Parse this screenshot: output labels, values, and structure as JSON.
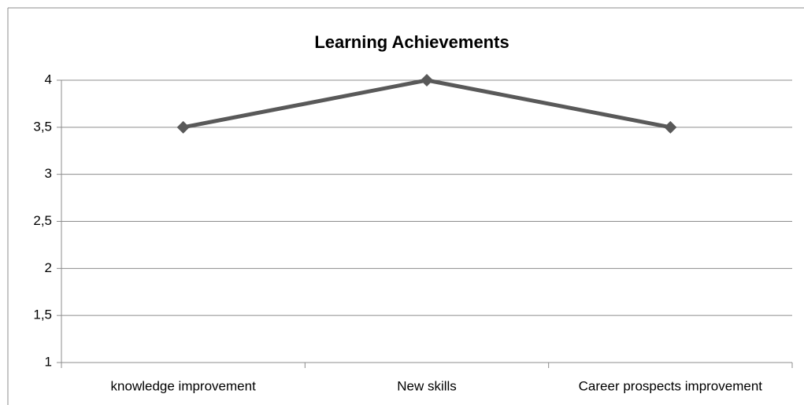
{
  "chart_data": {
    "type": "line",
    "title": "Learning Achievements",
    "categories": [
      "knowledge improvement",
      "New skills",
      "Career prospects improvement"
    ],
    "values": [
      3.5,
      4,
      3.5
    ],
    "color": "#595959",
    "ylim": [
      1,
      4
    ],
    "yticks": [
      1,
      {
        "value": 1.5,
        "label": "1,5"
      },
      2,
      {
        "value": 2.5,
        "label": "2,5"
      },
      3,
      {
        "value": 3.5,
        "label": "3,5"
      },
      4
    ],
    "grid": true
  }
}
